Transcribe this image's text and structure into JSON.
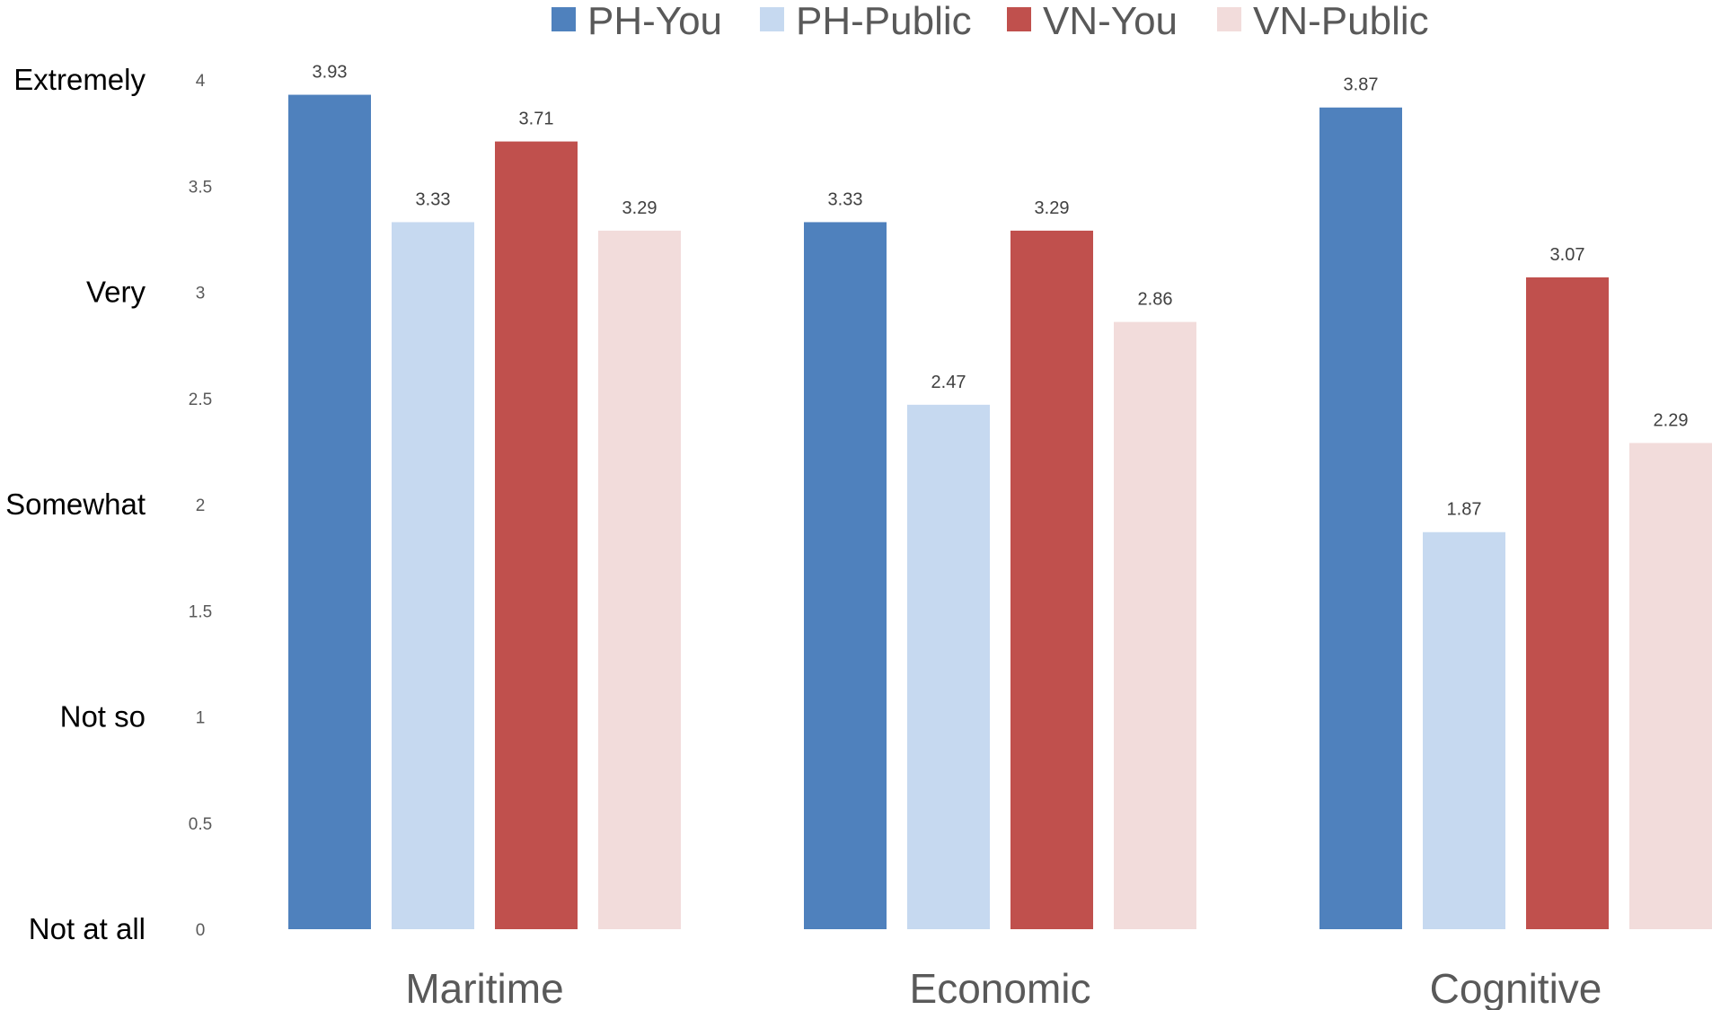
{
  "chart_data": {
    "type": "bar",
    "categories": [
      "Maritime",
      "Economic",
      "Cognitive"
    ],
    "series": [
      {
        "name": "PH-You",
        "color": "#4f81bd",
        "values": [
          3.93,
          3.33,
          3.87
        ]
      },
      {
        "name": "PH-Public",
        "color": "#c6d9f0",
        "values": [
          3.33,
          2.47,
          1.87
        ]
      },
      {
        "name": "VN-You",
        "color": "#c0504d",
        "values": [
          3.71,
          3.29,
          3.07
        ]
      },
      {
        "name": "VN-Public",
        "color": "#f2dcdb",
        "values": [
          3.29,
          2.86,
          2.29
        ]
      }
    ],
    "ylim": [
      0,
      4
    ],
    "yticks": [
      "0",
      "0.5",
      "1",
      "1.5",
      "2",
      "2.5",
      "3",
      "3.5",
      "4"
    ],
    "scale_labels": [
      {
        "label": "Not at all",
        "value": 0
      },
      {
        "label": "Not so",
        "value": 1
      },
      {
        "label": "Somewhat",
        "value": 2
      },
      {
        "label": "Very",
        "value": 3
      },
      {
        "label": "Extremely",
        "value": 4
      }
    ],
    "legend_position": "top",
    "grid": false,
    "data_labels": true,
    "title": "",
    "xlabel": "",
    "ylabel": ""
  }
}
